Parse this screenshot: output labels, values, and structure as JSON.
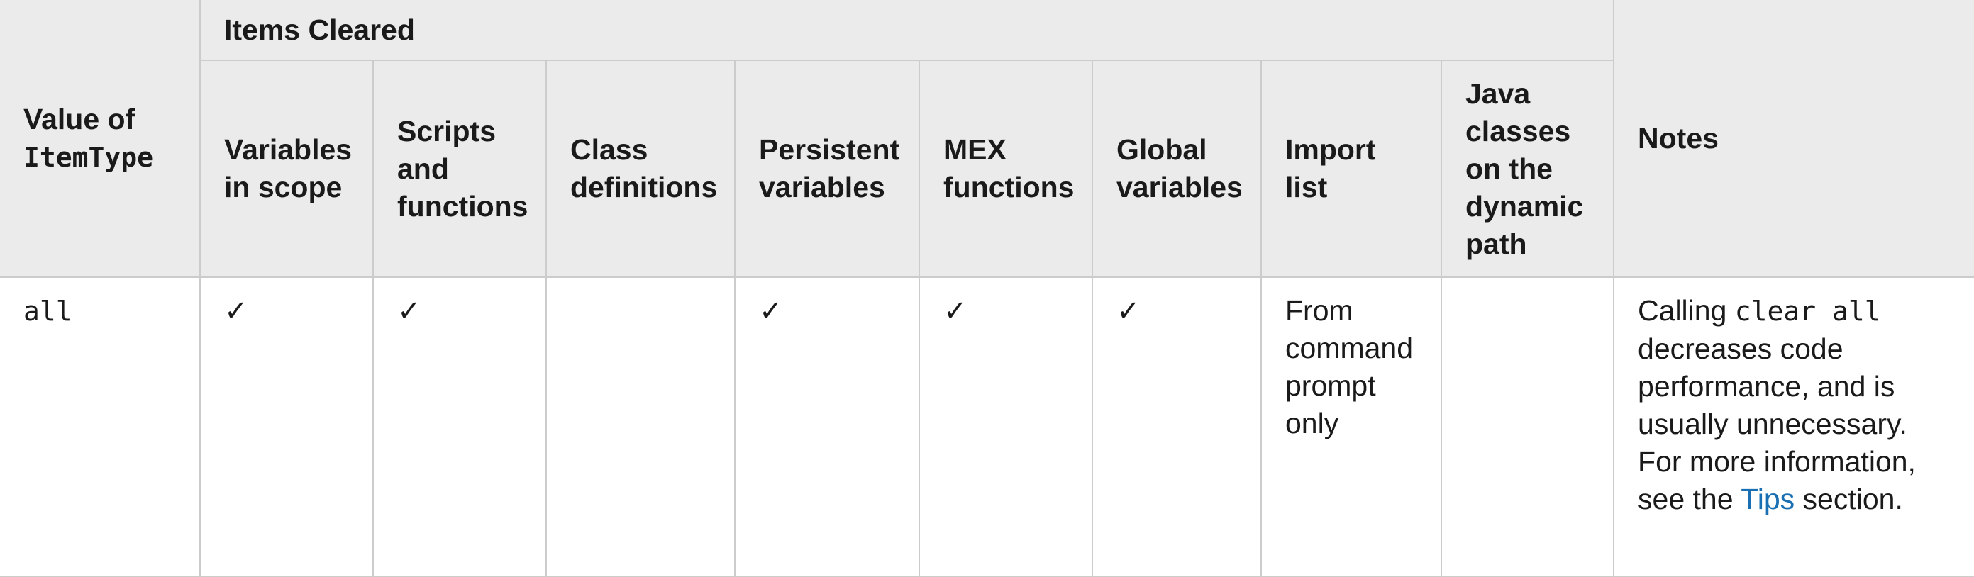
{
  "header": {
    "value_label": "Value of",
    "value_code": "ItemType",
    "group_label": "Items Cleared",
    "notes_label": "Notes",
    "columns": [
      {
        "line1": "Variables",
        "line2": "in scope",
        "line3": "",
        "line4": "",
        "line5": ""
      },
      {
        "line1": "Scripts",
        "line2": "and",
        "line3": "functions",
        "line4": "",
        "line5": ""
      },
      {
        "line1": "Class",
        "line2": "definitions",
        "line3": "",
        "line4": "",
        "line5": ""
      },
      {
        "line1": "Persistent",
        "line2": "variables",
        "line3": "",
        "line4": "",
        "line5": ""
      },
      {
        "line1": "MEX",
        "line2": "functions",
        "line3": "",
        "line4": "",
        "line5": ""
      },
      {
        "line1": "Global",
        "line2": "variables",
        "line3": "",
        "line4": "",
        "line5": ""
      },
      {
        "line1": "Import",
        "line2": "list",
        "line3": "",
        "line4": "",
        "line5": ""
      },
      {
        "line1": "Java",
        "line2": "classes",
        "line3": "on the",
        "line4": "dynamic",
        "line5": "path"
      }
    ]
  },
  "rows": [
    {
      "value": "all",
      "cells": [
        "✓",
        "✓",
        "",
        "✓",
        "✓",
        "✓",
        "",
        ""
      ],
      "import_list": {
        "line1": "From",
        "line2": "command",
        "line3": "prompt",
        "line4": "only"
      },
      "notes": {
        "calling": "Calling",
        "code": "clear all",
        "line2": "decreases code",
        "line3": "performance, and is",
        "line4": "usually unnecessary.",
        "line5": "For more information,",
        "line6_prefix": "see the",
        "link": "Tips",
        "line6_suffix": "section."
      }
    }
  ]
}
